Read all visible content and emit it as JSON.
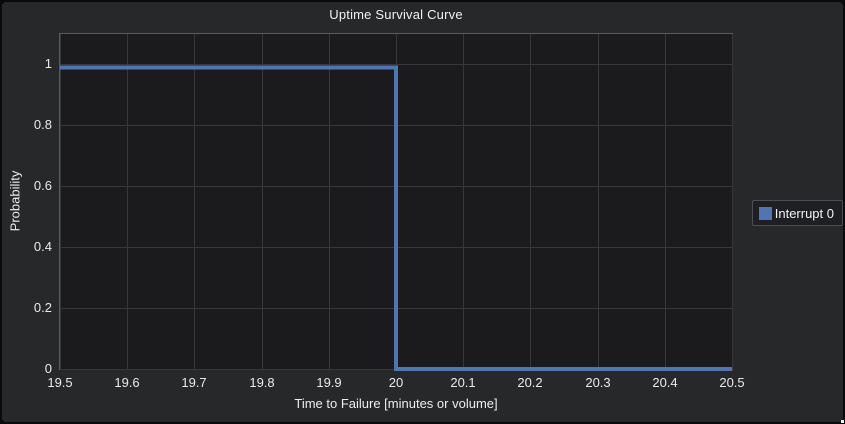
{
  "window": {
    "panel_bg": "#26282a",
    "frame_bg": "#0a0b0c",
    "plot_bg": "#1b1b1d",
    "grid_color": "#37383b",
    "frame_border_color": "#595b5e",
    "text_color": "#ebebeb"
  },
  "chart_data": {
    "type": "line",
    "subtype": "step-survival-curve",
    "title": "Uptime Survival Curve",
    "xlabel": "Time to Failure [minutes or volume]",
    "ylabel": "Probability",
    "xlim": [
      19.5,
      20.5
    ],
    "ylim": [
      0,
      1.1
    ],
    "grid": true,
    "x_ticks": [
      {
        "value": 19.5,
        "label": "19.5"
      },
      {
        "value": 19.6,
        "label": "19.6"
      },
      {
        "value": 19.7,
        "label": "19.7"
      },
      {
        "value": 19.8,
        "label": "19.8"
      },
      {
        "value": 19.9,
        "label": "19.9"
      },
      {
        "value": 20,
        "label": "20"
      },
      {
        "value": 20.1,
        "label": "20.1"
      },
      {
        "value": 20.2,
        "label": "20.2"
      },
      {
        "value": 20.3,
        "label": "20.3"
      },
      {
        "value": 20.4,
        "label": "20.4"
      },
      {
        "value": 20.5,
        "label": "20.5"
      }
    ],
    "y_ticks": [
      {
        "value": 0,
        "label": "0"
      },
      {
        "value": 0.2,
        "label": "0.2"
      },
      {
        "value": 0.4,
        "label": "0.4"
      },
      {
        "value": 0.6,
        "label": "0.6"
      },
      {
        "value": 0.8,
        "label": "0.8"
      },
      {
        "value": 1,
        "label": "1"
      }
    ],
    "legend": {
      "position": "right-outside",
      "entries": [
        {
          "label": "Interrupt 0",
          "color": "#4e76b4"
        }
      ]
    },
    "series": [
      {
        "name": "Interrupt 0",
        "color": "#4e76b4",
        "line_width": 4,
        "step": true,
        "x": [
          19.5,
          20,
          20,
          20.5
        ],
        "y": [
          0.99,
          0.99,
          0,
          0
        ]
      }
    ]
  }
}
